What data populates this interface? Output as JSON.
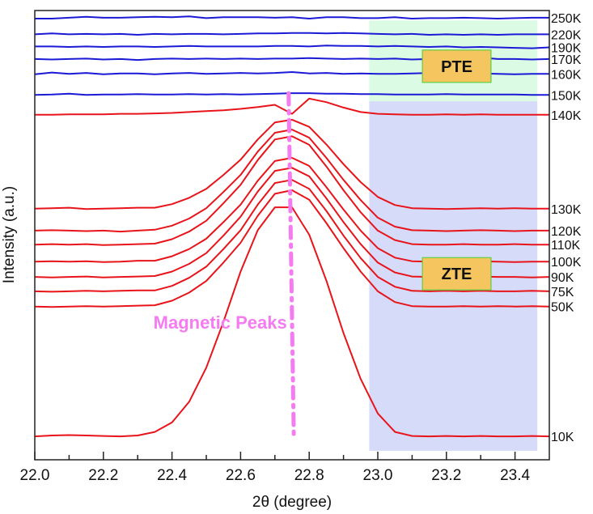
{
  "chart_data": {
    "type": "line",
    "title": "",
    "xlabel": "2θ (degree)",
    "ylabel": "Intensity (a.u.)",
    "xlim": [
      22.0,
      23.5
    ],
    "ylim": [
      0,
      100
    ],
    "grid": false,
    "x_ticks": [
      "22.0",
      "22.2",
      "22.4",
      "22.6",
      "22.8",
      "23.0",
      "23.2",
      "23.4"
    ],
    "x_tick_values": [
      22.0,
      22.2,
      22.4,
      22.6,
      22.8,
      23.0,
      23.2,
      23.4
    ],
    "x_minor_tick_values": [
      22.1,
      22.3,
      22.5,
      22.7,
      22.9,
      23.1,
      23.3
    ],
    "x": [
      22.0,
      22.05,
      22.1,
      22.15,
      22.2,
      22.25,
      22.3,
      22.35,
      22.4,
      22.45,
      22.5,
      22.55,
      22.6,
      22.65,
      22.7,
      22.75,
      22.8,
      22.85,
      22.9,
      22.95,
      23.0,
      23.05,
      23.1,
      23.15,
      23.2,
      23.25,
      23.3,
      23.35,
      23.4,
      23.45,
      23.5
    ],
    "series": [
      {
        "name": "250K",
        "color": "#1a1ad6",
        "values": [
          98.2,
          98.2,
          98.4,
          98.6,
          98.4,
          98.4,
          98.5,
          98.6,
          98.5,
          98.7,
          98.3,
          98.5,
          98.5,
          98.5,
          98.4,
          98.5,
          98.2,
          98.5,
          98.5,
          98.3,
          98.3,
          98.5,
          98.2,
          98.3,
          98.3,
          98.4,
          98.3,
          98.2,
          98.3,
          98.4,
          98.4
        ]
      },
      {
        "name": "220K",
        "color": "#1a1ad6",
        "values": [
          94.7,
          94.9,
          94.7,
          94.8,
          94.7,
          94.8,
          94.6,
          94.8,
          94.7,
          94.8,
          94.8,
          94.7,
          94.8,
          94.9,
          94.9,
          95.0,
          95.0,
          94.9,
          95.0,
          94.9,
          94.8,
          94.7,
          94.8,
          94.6,
          94.7,
          94.6,
          94.7,
          94.6,
          94.7,
          94.7,
          94.7
        ]
      },
      {
        "name": "190K",
        "color": "#1a1ad6",
        "values": [
          92.0,
          92.0,
          91.9,
          92.0,
          91.9,
          92.0,
          92.0,
          91.9,
          92.0,
          92.1,
          92.0,
          92.0,
          92.0,
          92.0,
          92.1,
          92.1,
          92.0,
          92.2,
          92.1,
          92.1,
          92.0,
          92.1,
          92.0,
          91.9,
          92.0,
          91.8,
          91.9,
          91.8,
          91.7,
          91.6,
          91.8
        ]
      },
      {
        "name": "170K",
        "color": "#1a1ad6",
        "values": [
          89.2,
          89.1,
          89.2,
          89.3,
          89.1,
          89.2,
          89.0,
          89.2,
          89.3,
          89.2,
          89.3,
          89.2,
          89.3,
          89.2,
          89.3,
          89.3,
          89.4,
          89.3,
          89.2,
          89.3,
          89.2,
          89.3,
          89.1,
          89.2,
          89.1,
          89.2,
          89.5,
          89.2,
          89.2,
          89.1,
          89.2
        ]
      },
      {
        "name": "160K",
        "color": "#1a1ad6",
        "values": [
          85.8,
          86.2,
          85.9,
          86.1,
          85.8,
          86.0,
          86.0,
          85.8,
          86.0,
          86.1,
          85.9,
          86.0,
          86.1,
          86.0,
          86.1,
          86.3,
          86.0,
          86.1,
          85.9,
          86.0,
          85.9,
          85.9,
          86.0,
          86.1,
          85.9,
          85.9,
          86.0,
          85.9,
          85.8,
          85.9,
          85.9
        ]
      },
      {
        "name": "150K",
        "color": "#1a1ad6",
        "values": [
          81.2,
          81.3,
          81.5,
          81.2,
          81.3,
          81.3,
          81.4,
          81.3,
          81.3,
          81.4,
          81.3,
          81.4,
          81.3,
          81.4,
          81.5,
          81.6,
          81.6,
          81.5,
          81.5,
          81.4,
          81.4,
          81.3,
          81.3,
          81.3,
          81.4,
          81.3,
          81.3,
          81.3,
          81.3,
          81.2,
          81.2
        ]
      },
      {
        "name": "140K",
        "color": "#e8141a",
        "values": [
          76.8,
          76.8,
          76.9,
          76.9,
          76.9,
          77.0,
          77.0,
          77.1,
          77.2,
          77.4,
          77.6,
          77.8,
          78.1,
          78.5,
          79.0,
          77.0,
          80.4,
          79.6,
          78.4,
          77.4,
          77.0,
          76.9,
          76.8,
          76.8,
          76.9,
          76.8,
          76.9,
          76.8,
          76.8,
          76.8,
          76.8
        ]
      },
      {
        "name": "130K",
        "color": "#e8141a",
        "values": [
          55.9,
          56.0,
          56.1,
          55.8,
          55.9,
          56.0,
          56.1,
          56.1,
          56.9,
          58.3,
          60.3,
          63.4,
          66.8,
          71.3,
          75.1,
          75.7,
          74.1,
          70.2,
          65.8,
          61.8,
          58.5,
          56.7,
          56.0,
          55.9,
          55.8,
          55.9,
          56.0,
          55.9,
          56.0,
          55.9,
          55.9
        ]
      },
      {
        "name": "120K",
        "color": "#e8141a",
        "values": [
          51.0,
          51.1,
          51.0,
          50.9,
          51.0,
          50.8,
          51.0,
          51.2,
          52.1,
          53.7,
          56.0,
          59.6,
          63.4,
          68.6,
          72.8,
          73.5,
          71.7,
          67.2,
          62.3,
          57.8,
          53.9,
          51.9,
          51.1,
          51.0,
          50.9,
          51.0,
          51.1,
          51.0,
          50.9,
          51.0,
          51.0
        ]
      },
      {
        "name": "110K",
        "color": "#e8141a",
        "values": [
          47.9,
          48.0,
          47.9,
          48.0,
          47.8,
          47.9,
          48.0,
          48.1,
          49.1,
          50.8,
          53.2,
          57.1,
          61.2,
          66.7,
          71.3,
          72.0,
          70.1,
          65.3,
          60.0,
          55.1,
          51.0,
          48.9,
          48.0,
          47.9,
          47.9,
          48.0,
          47.9,
          47.9,
          48.0,
          47.9,
          47.9
        ]
      },
      {
        "name": "100K",
        "color": "#e8141a",
        "values": [
          44.1,
          44.2,
          44.1,
          44.2,
          44.0,
          44.1,
          44.3,
          44.3,
          45.3,
          46.9,
          49.2,
          52.9,
          56.8,
          62.1,
          66.5,
          67.2,
          65.4,
          60.7,
          55.7,
          51.0,
          47.1,
          45.0,
          44.2,
          44.1,
          44.0,
          44.1,
          44.2,
          44.1,
          44.0,
          44.1,
          44.1
        ]
      },
      {
        "name": "90K",
        "color": "#e8141a",
        "values": [
          40.7,
          40.6,
          40.7,
          40.8,
          40.6,
          40.7,
          40.8,
          40.9,
          41.9,
          43.6,
          46.0,
          49.9,
          54.1,
          59.7,
          64.3,
          65.0,
          63.1,
          58.2,
          52.9,
          48.0,
          43.9,
          41.7,
          40.8,
          40.7,
          40.6,
          40.7,
          40.8,
          40.7,
          40.7,
          40.6,
          40.7
        ]
      },
      {
        "name": "75K",
        "color": "#e8141a",
        "values": [
          37.5,
          37.4,
          37.5,
          37.6,
          37.5,
          37.6,
          37.7,
          37.7,
          38.7,
          40.5,
          43.0,
          46.9,
          51.1,
          56.8,
          61.6,
          62.3,
          60.3,
          55.4,
          49.9,
          44.9,
          40.7,
          38.5,
          37.6,
          37.5,
          37.6,
          37.5,
          37.6,
          37.5,
          37.5,
          37.6,
          37.5
        ]
      },
      {
        "name": "50K",
        "color": "#e8141a",
        "values": [
          34.1,
          34.0,
          34.1,
          34.2,
          34.1,
          34.2,
          34.3,
          34.4,
          35.4,
          37.2,
          39.8,
          43.9,
          48.3,
          54.3,
          59.2,
          60.0,
          57.9,
          52.7,
          47.1,
          41.9,
          37.5,
          35.1,
          34.2,
          34.1,
          34.1,
          34.2,
          34.1,
          34.2,
          34.1,
          34.2,
          34.1
        ]
      },
      {
        "name": "10K",
        "color": "#e8141a",
        "values": [
          5.2,
          5.4,
          5.5,
          5.4,
          5.3,
          5.2,
          5.4,
          6.2,
          8.3,
          12.9,
          20.5,
          30.7,
          41.9,
          51.1,
          56.2,
          56.2,
          50.1,
          39.9,
          28.2,
          18.0,
          10.3,
          6.2,
          5.3,
          5.2,
          5.3,
          5.2,
          5.3,
          5.2,
          5.2,
          5.3,
          5.2
        ]
      }
    ],
    "regions": [
      {
        "label": "PTE",
        "x_range": [
          22.975,
          23.465
        ],
        "y_range": [
          79.8,
          97.8
        ],
        "color": "#dcfbe4",
        "box_x": [
          23.13,
          23.33
        ],
        "box_y": [
          84.0,
          91.2
        ]
      },
      {
        "label": "ZTE",
        "x_range": [
          22.975,
          23.465
        ],
        "y_range": [
          2.0,
          79.8
        ],
        "color": "#d6dbfa",
        "box_x": [
          23.13,
          23.33
        ],
        "box_y": [
          37.8,
          45.0
        ]
      }
    ],
    "box_fill": "#f5c55f",
    "box_border": "#5fcf3f",
    "annotation": {
      "text": "Magnetic Peaks",
      "color": "#f57bf0",
      "line_x": [
        22.74,
        22.755
      ],
      "line_y": [
        81.6,
        5.4
      ],
      "text_x": 22.74,
      "text_y": 30.6
    }
  }
}
